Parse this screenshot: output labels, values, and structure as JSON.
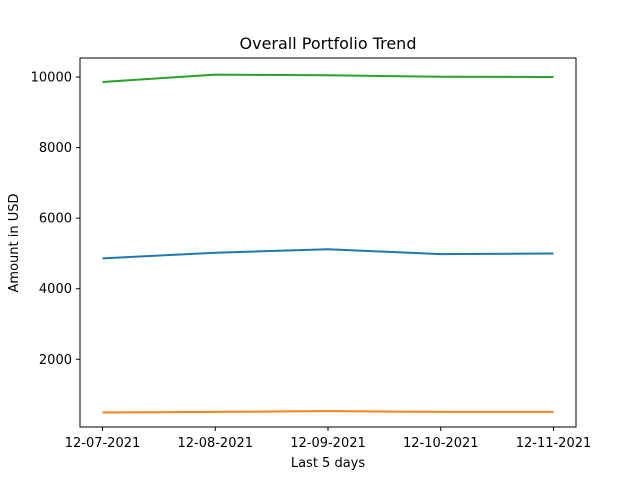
{
  "chart_data": {
    "type": "line",
    "title": "Overall Portfolio Trend",
    "xlabel": "Last 5 days",
    "ylabel": "Amount in USD",
    "categories": [
      "12-07-2021",
      "12-08-2021",
      "12-09-2021",
      "12-10-2021",
      "12-11-2021"
    ],
    "yticks": [
      2000,
      4000,
      6000,
      8000,
      10000
    ],
    "ylim": [
      80,
      10540
    ],
    "grid": false,
    "series": [
      {
        "color": "#1f77b4",
        "values": [
          4860,
          5020,
          5120,
          4980,
          5000
        ]
      },
      {
        "color": "#ff7f0e",
        "values": [
          490,
          510,
          530,
          510,
          510
        ]
      },
      {
        "color": "#2ca02c",
        "values": [
          9860,
          10070,
          10050,
          10010,
          10000
        ]
      }
    ]
  }
}
